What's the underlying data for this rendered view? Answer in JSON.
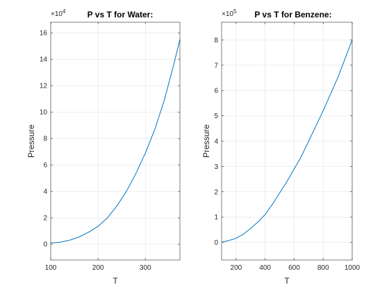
{
  "colors": {
    "background": "#ffffff",
    "axis": "#262626",
    "grid": "#e3e3e3",
    "series": "#0072bd",
    "title": "#000000"
  },
  "chart_data": [
    {
      "type": "line",
      "title": "P vs T for Water:",
      "xlabel": "T",
      "ylabel": "Pressure",
      "exponent": {
        "base": "×10",
        "power": "4"
      },
      "xlim": [
        100,
        373
      ],
      "ylim": [
        -1.2,
        16.8
      ],
      "xticks": [
        100,
        200,
        300
      ],
      "yticks": [
        0,
        2,
        4,
        6,
        8,
        10,
        12,
        14,
        16
      ],
      "grid": true,
      "series": [
        {
          "x": [
            100,
            120,
            140,
            160,
            180,
            200,
            220,
            240,
            260,
            280,
            300,
            320,
            340,
            360,
            373
          ],
          "y": [
            0.08,
            0.15,
            0.3,
            0.55,
            0.9,
            1.35,
            2.0,
            2.9,
            4.0,
            5.35,
            6.9,
            8.7,
            10.9,
            13.6,
            15.5
          ]
        }
      ]
    },
    {
      "type": "line",
      "title": "P vs T for Benzene:",
      "xlabel": "T",
      "ylabel": "Pressure",
      "exponent": {
        "base": "×10",
        "power": "5"
      },
      "xlim": [
        100,
        1000
      ],
      "ylim": [
        -0.7,
        8.7
      ],
      "xticks": [
        200,
        400,
        600,
        800,
        1000
      ],
      "yticks": [
        0,
        1,
        2,
        3,
        4,
        5,
        6,
        7,
        8
      ],
      "grid": true,
      "series": [
        {
          "x": [
            100,
            150,
            200,
            250,
            300,
            350,
            400,
            450,
            500,
            550,
            600,
            650,
            700,
            750,
            800,
            850,
            900,
            950,
            1000
          ],
          "y": [
            0.0,
            0.07,
            0.16,
            0.32,
            0.55,
            0.8,
            1.1,
            1.5,
            1.95,
            2.4,
            2.9,
            3.4,
            4.0,
            4.6,
            5.2,
            5.85,
            6.5,
            7.25,
            8.0
          ]
        }
      ]
    }
  ]
}
